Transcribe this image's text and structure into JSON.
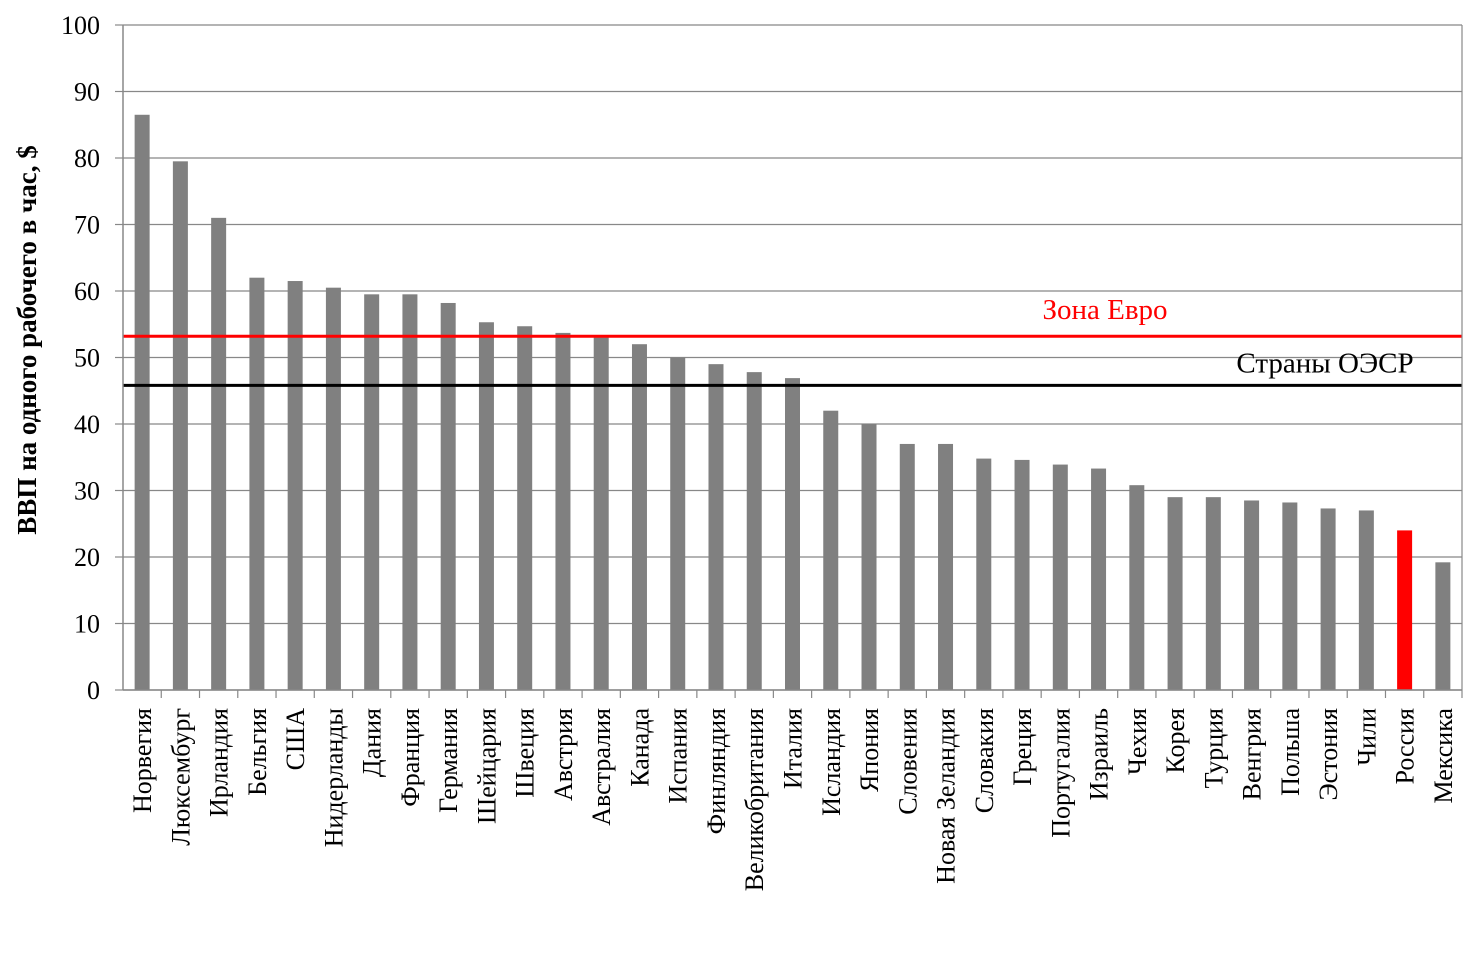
{
  "chart_data": {
    "type": "bar",
    "title": "",
    "xlabel": "",
    "ylabel": "ВВП на одного рабочего в час, $",
    "ylim": [
      0,
      100
    ],
    "yticks": [
      0,
      10,
      20,
      30,
      40,
      50,
      60,
      70,
      80,
      90,
      100
    ],
    "grid": true,
    "categories": [
      "Норвегия",
      "Люксембург",
      "Ирландия",
      "Бельгия",
      "США",
      "Нидерланды",
      "Дания",
      "Франция",
      "Германия",
      "Шейцария",
      "Швеция",
      "Австрия",
      "Австралия",
      "Канада",
      "Испания",
      "Финляндия",
      "Великобритания",
      "Италия",
      "Исландия",
      "Япония",
      "Словения",
      "Новая Зеландия",
      "Словакия",
      "Греция",
      "Португалия",
      "Израиль",
      "Чехия",
      "Корея",
      "Турция",
      "Венгрия",
      "Польша",
      "Эстония",
      "Чили",
      "Россия",
      "Мексика"
    ],
    "values": [
      86.5,
      79.5,
      71,
      62,
      61.5,
      60.5,
      59.5,
      59.5,
      58.2,
      55.3,
      54.7,
      53.7,
      53,
      52,
      50,
      49,
      47.8,
      46.9,
      42,
      40,
      37,
      37,
      34.8,
      34.6,
      33.9,
      33.3,
      30.8,
      29,
      29,
      28.5,
      28.2,
      27.3,
      27,
      24,
      19.2
    ],
    "highlight": {
      "category": "Россия",
      "color": "#ff0000"
    },
    "bar_color": "#808080",
    "reference_lines": [
      {
        "label": "Зона Евро",
        "value": 53.2,
        "color": "#ff0000"
      },
      {
        "label": "Страны ОЭСР",
        "value": 45.8,
        "color": "#000000"
      }
    ]
  }
}
